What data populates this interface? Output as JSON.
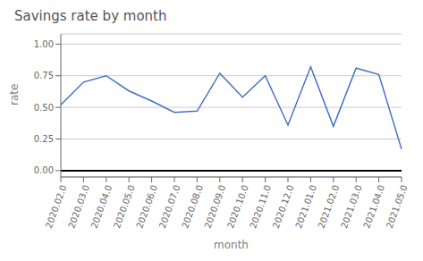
{
  "chart_data": {
    "type": "line",
    "title": "Savings rate by month",
    "x_label": "month",
    "y_label": "rate",
    "categories": [
      "2020.02.0",
      "2020.03.0",
      "2020.04.0",
      "2020.05.0",
      "2020.06.0",
      "2020.07.0",
      "2020.08.0",
      "2020.09.0",
      "2020.10.0",
      "2020.11.0",
      "2020.12.0",
      "2021.01.0",
      "2021.02.0",
      "2021.03.0",
      "2021.04.0",
      "2021.05.0"
    ],
    "values": [
      0.52,
      0.7,
      0.75,
      0.63,
      0.55,
      0.46,
      0.47,
      0.77,
      0.58,
      0.75,
      0.36,
      0.82,
      0.35,
      0.81,
      0.76,
      0.17
    ],
    "color": "#4472C4",
    "ylim": [
      -0.05,
      1.08
    ],
    "yticks": [
      {
        "value": 0,
        "label": "0.00"
      },
      {
        "value": 0.25,
        "label": "0.25"
      },
      {
        "value": 0.5,
        "label": "0.50"
      },
      {
        "value": 0.75,
        "label": "0.75"
      },
      {
        "value": 1,
        "label": "1.00"
      }
    ],
    "grid": true,
    "hlines": [
      {
        "y": 0,
        "color": "#000000"
      }
    ]
  }
}
